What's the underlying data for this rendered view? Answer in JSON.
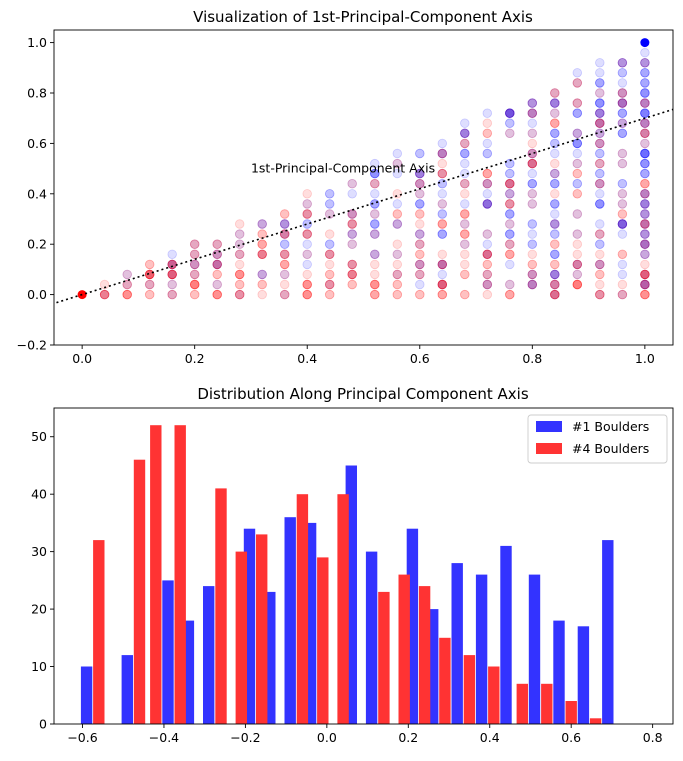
{
  "chart_data": [
    {
      "type": "scatter",
      "title": "Visualization of 1st-Principal-Component Axis",
      "xlim": [
        -0.05,
        1.05
      ],
      "ylim": [
        -0.2,
        1.05
      ],
      "xticks": [
        0.0,
        0.2,
        0.4,
        0.6,
        0.8,
        1.0
      ],
      "xtick_labels": [
        "0.0",
        "0.2",
        "0.4",
        "0.6",
        "0.8",
        "1.0"
      ],
      "yticks": [
        -0.2,
        0.0,
        0.2,
        0.4,
        0.6,
        0.8,
        1.0
      ],
      "ytick_labels": [
        "−0.2",
        "0.0",
        "0.2",
        "0.4",
        "0.6",
        "0.8",
        "1.0"
      ],
      "series_colors": [
        "#0000ff",
        "#ff0000"
      ],
      "point_alpha": 0.13,
      "points_per_series": 430,
      "highlight_points": [
        {
          "x": 1.0,
          "y": 1.0,
          "color": "#0000ff"
        },
        {
          "x": 0.0,
          "y": 0.0,
          "color": "#ff0000"
        }
      ],
      "pc_line": {
        "slope": 0.7,
        "intercept": 0.0,
        "style": "dotted",
        "color": "#000000"
      },
      "annotation": {
        "text": "1st-Principal-Component Axis",
        "x": 0.3,
        "y": 0.5
      },
      "grid": false,
      "legend": false
    },
    {
      "type": "bar",
      "title": "Distribution Along Principal Component Axis",
      "xlim": [
        -0.67,
        0.85
      ],
      "ylim": [
        0,
        55
      ],
      "xticks": [
        -0.6,
        -0.4,
        -0.2,
        0.0,
        0.2,
        0.4,
        0.6,
        0.8
      ],
      "xtick_labels": [
        "−0.6",
        "−0.4",
        "−0.2",
        "0.0",
        "0.2",
        "0.4",
        "0.6",
        "0.8"
      ],
      "yticks": [
        0,
        10,
        20,
        30,
        40,
        50
      ],
      "ytick_labels": [
        "0",
        "10",
        "20",
        "30",
        "40",
        "50"
      ],
      "bin_width": 0.06,
      "bar_width": 0.028,
      "series": [
        {
          "name": "#1 Boulders",
          "color": "#3333ff",
          "x": [
            -0.59,
            -0.49,
            -0.39,
            -0.34,
            -0.29,
            -0.19,
            -0.14,
            -0.09,
            -0.04,
            0.06,
            0.11,
            0.21,
            0.26,
            0.32,
            0.38,
            0.44,
            0.51,
            0.57,
            0.63,
            0.69,
            0.76
          ],
          "values": [
            10,
            12,
            25,
            18,
            24,
            34,
            23,
            36,
            35,
            45,
            30,
            34,
            20,
            28,
            26,
            31,
            26,
            18,
            17,
            32,
            0
          ]
        },
        {
          "name": "#4 Boulders",
          "color": "#ff3333",
          "x": [
            -0.56,
            -0.46,
            -0.42,
            -0.36,
            -0.26,
            -0.21,
            -0.16,
            -0.06,
            -0.01,
            0.04,
            0.14,
            0.19,
            0.24,
            0.29,
            0.35,
            0.41,
            0.48,
            0.54,
            0.6,
            0.66,
            0.73,
            0.79
          ],
          "values": [
            32,
            46,
            52,
            52,
            41,
            30,
            33,
            40,
            29,
            40,
            23,
            26,
            24,
            15,
            12,
            10,
            7,
            7,
            4,
            1,
            0,
            0
          ]
        }
      ],
      "grid": false,
      "legend": "top-right"
    }
  ]
}
